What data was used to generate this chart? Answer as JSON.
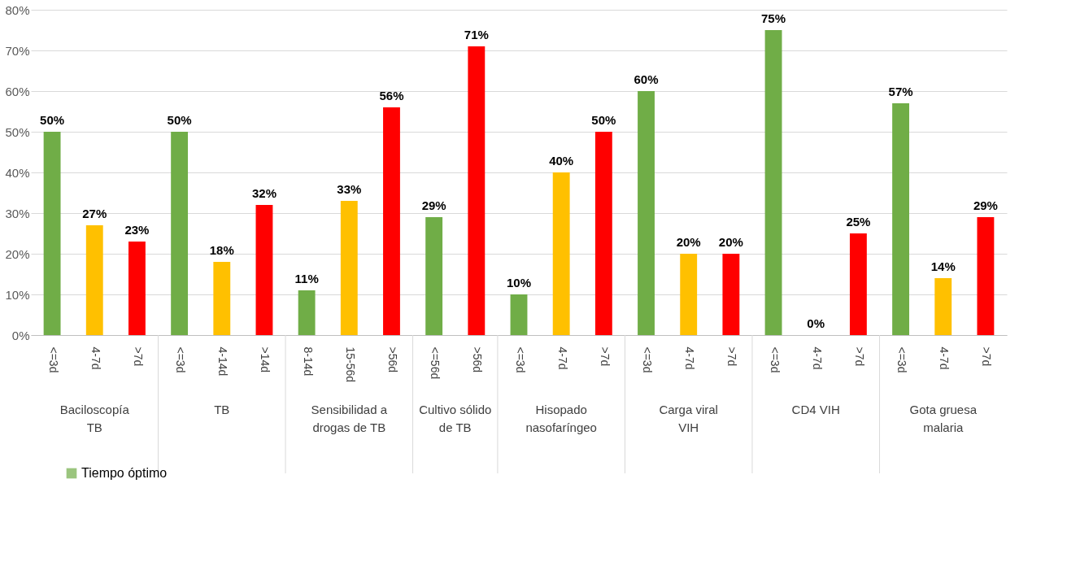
{
  "chart_data": {
    "type": "bar",
    "categories": [
      "<=3d",
      "4-7d",
      ">7d",
      "<=3d",
      "4-14d",
      ">14d",
      "8-14d",
      "15-56d",
      ">56d",
      "<=56d",
      ">56d",
      "<=3d",
      "4-7d",
      ">7d",
      "<=3d",
      "4-7d",
      ">7d",
      "<=3d",
      "4-7d",
      ">7d",
      "<=3d",
      "4-7d",
      ">7d"
    ],
    "series": [
      {
        "name": "Tiempo óptimo",
        "values": [
          50,
          27,
          23,
          50,
          18,
          32,
          11,
          33,
          56,
          29,
          71,
          10,
          40,
          50,
          60,
          20,
          20,
          75,
          0,
          25,
          57,
          14,
          29
        ]
      }
    ],
    "colors": [
      "#70ad47",
      "#ffc000",
      "#ff0000",
      "#70ad47",
      "#ffc000",
      "#ff0000",
      "#70ad47",
      "#ffc000",
      "#ff0000",
      "#70ad47",
      "#ff0000",
      "#70ad47",
      "#ffc000",
      "#ff0000",
      "#70ad47",
      "#ffc000",
      "#ff0000",
      "#70ad47",
      "#ffc000",
      "#ff0000",
      "#70ad47",
      "#ffc000",
      "#ff0000"
    ],
    "annotations": [
      "Baciloscopía TB",
      "TB",
      "Sensibilidad a drogas de TB",
      "Cultivo sólido de TB",
      "Hisopado nasofaríngeo",
      "Carga viral VIH",
      "CD4 VIH",
      "Gota gruesa malaria"
    ],
    "ylim": [
      0,
      80
    ],
    "yticks": [
      {
        "value": 0,
        "label": "0%"
      },
      {
        "value": 10,
        "label": "10%"
      },
      {
        "value": 20,
        "label": "20%"
      },
      {
        "value": 30,
        "label": "30%"
      },
      {
        "value": 40,
        "label": "40%"
      },
      {
        "value": 50,
        "label": "50%"
      },
      {
        "value": 60,
        "label": "60%"
      },
      {
        "value": 70,
        "label": "70%"
      },
      {
        "value": 80,
        "label": "80%"
      }
    ],
    "value_labels": [
      "50%",
      "27%",
      "23%",
      "50%",
      "18%",
      "32%",
      "11%",
      "33%",
      "56%",
      "29%",
      "71%",
      "10%",
      "40%",
      "50%",
      "60%",
      "20%",
      "20%",
      "75%",
      "0%",
      "25%",
      "57%",
      "14%",
      "29%"
    ],
    "grid": "y",
    "legend": "bottom left"
  }
}
